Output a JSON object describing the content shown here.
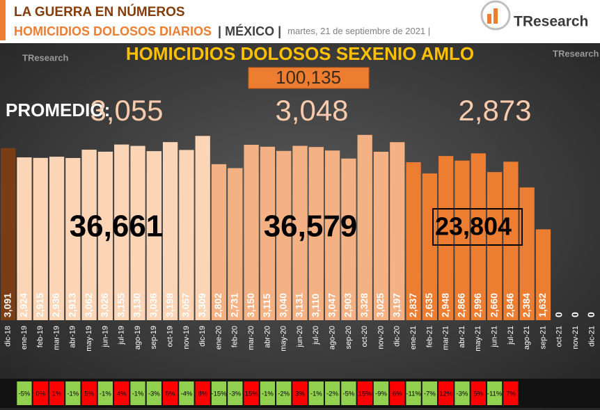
{
  "header": {
    "line1": "LA GUERRA EN NÚMEROS",
    "line2": "HOMICIDIOS DOLOSOS DIARIOS",
    "place": "| MÉXICO |",
    "date": "martes, 21 de septiembre de 2021 |",
    "logo": "TResearch"
  },
  "chart_data": {
    "type": "bar",
    "title": "HOMICIDIOS DOLOSOS SEXENIO AMLO",
    "total": {
      "value": 100135,
      "label": "100,135"
    },
    "average_label": "PROMEDIO:",
    "groups": [
      {
        "average": {
          "value": 3055,
          "label": "3,055"
        },
        "total": {
          "value": 36661,
          "label": "36,661"
        }
      },
      {
        "average": {
          "value": 3048,
          "label": "3,048"
        },
        "total": {
          "value": 36579,
          "label": "36,579"
        }
      },
      {
        "average": {
          "value": 2873,
          "label": "2,873"
        },
        "total": {
          "value": 23804,
          "label": "23,804"
        }
      }
    ],
    "categories": [
      "dic-18",
      "ene-19",
      "feb-19",
      "mar-19",
      "abr-19",
      "may-19",
      "jun-19",
      "jul-19",
      "ago-19",
      "sep-19",
      "oct-19",
      "nov-19",
      "dic-19",
      "ene-20",
      "feb-20",
      "mar-20",
      "abr-20",
      "may-20",
      "jun-20",
      "jul-20",
      "ago-20",
      "sep-20",
      "oct-20",
      "nov-20",
      "dic-20",
      "ene-21",
      "feb-21",
      "mar-21",
      "abr-21",
      "may-21",
      "jun-21",
      "jul-21",
      "ago-21",
      "sep-21",
      "oct-21",
      "nov-21",
      "dic-21"
    ],
    "values": [
      3091,
      2924,
      2915,
      2936,
      2913,
      3062,
      3026,
      3155,
      3130,
      3036,
      3198,
      3057,
      3309,
      2802,
      2731,
      3150,
      3115,
      3040,
      3131,
      3110,
      3047,
      2903,
      3328,
      3025,
      3197,
      2837,
      2635,
      2948,
      2866,
      2996,
      2660,
      2846,
      2384,
      1632,
      0,
      0,
      0
    ],
    "value_labels": [
      "3,091",
      "2,924",
      "2,915",
      "2,936",
      "2,913",
      "3,062",
      "3,026",
      "3,155",
      "3,130",
      "3,036",
      "3,198",
      "3,057",
      "3,309",
      "2,802",
      "2,731",
      "3,150",
      "3,115",
      "3,040",
      "3,131",
      "3,110",
      "3,047",
      "2,903",
      "3,328",
      "3,025",
      "3,197",
      "2,837",
      "2,635",
      "2,948",
      "2,866",
      "2,996",
      "2,660",
      "2,846",
      "2,384",
      "1,632",
      "0",
      "0",
      "0"
    ],
    "colors": [
      "#7a3e16",
      "#fbd5b5",
      "#fbd5b5",
      "#fbd5b5",
      "#fbd5b5",
      "#fbd5b5",
      "#fbd5b5",
      "#fbd5b5",
      "#fbd5b5",
      "#fbd5b5",
      "#fbd5b5",
      "#fbd5b5",
      "#fbd5b5",
      "#f4b183",
      "#f4b183",
      "#f4b183",
      "#f4b183",
      "#f4b183",
      "#f4b183",
      "#f4b183",
      "#f4b183",
      "#f4b183",
      "#f4b183",
      "#f4b183",
      "#f4b183",
      "#ed7d31",
      "#ed7d31",
      "#ed7d31",
      "#ed7d31",
      "#ed7d31",
      "#ed7d31",
      "#ed7d31",
      "#ed7d31",
      "#ed7d31",
      "#ed7d31",
      "#ed7d31",
      "#ed7d31"
    ],
    "ylim": [
      0,
      3500
    ],
    "changes": {
      "values": [
        null,
        -5,
        0,
        1,
        -1,
        5,
        -1,
        4,
        -1,
        -3,
        5,
        -4,
        8,
        -15,
        -3,
        15,
        -1,
        -2,
        3,
        -1,
        -2,
        -5,
        15,
        -9,
        6,
        -11,
        -7,
        12,
        -3,
        5,
        -11,
        7,
        null,
        null,
        null,
        null,
        null
      ],
      "value_labels": [
        null,
        "-5%",
        "0%",
        "1%",
        "-1%",
        "5%",
        "-1%",
        "4%",
        "-1%",
        "-3%",
        "5%",
        "-4%",
        "8%",
        "-15%",
        "-3%",
        "15%",
        "-1%",
        "-2%",
        "3%",
        "-1%",
        "-2%",
        "-5%",
        "15%",
        "-9%",
        "6%",
        "-11%",
        "-7%",
        "12%",
        "-3%",
        "5%",
        "-11%",
        "7%",
        null,
        null,
        null,
        null,
        null
      ],
      "increase_color": "#ff0000",
      "decrease_color": "#92d050"
    }
  }
}
